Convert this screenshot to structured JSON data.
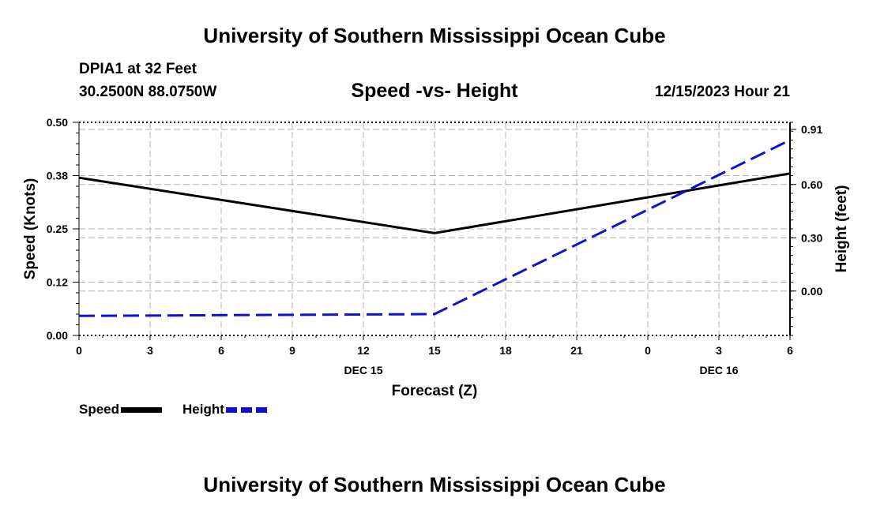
{
  "header": {
    "title": "University of Southern Mississippi Ocean Cube",
    "station": "DPIA1 at 32 Feet",
    "coordinates": "30.2500N  88.0750W",
    "datetime": "12/15/2023 Hour 21"
  },
  "footer": {
    "title": "University of Southern Mississippi Ocean Cube"
  },
  "legend": {
    "speed_label": "Speed",
    "height_label": "Height"
  },
  "colors": {
    "speed": "#000000",
    "height": "#1010d0",
    "grid": "#b4b4b4"
  },
  "chart_data": {
    "type": "line",
    "title": "Speed -vs- Height",
    "xlabel": "Forecast (Z)",
    "ylabel": "Speed (Knots)",
    "y2label": "Height (feet)",
    "x_hours": [
      0,
      3,
      6,
      9,
      12,
      15,
      18,
      21,
      24,
      27,
      30
    ],
    "x_tick_labels": [
      "0",
      "3",
      "6",
      "9",
      "12",
      "15",
      "18",
      "21",
      "0",
      "3",
      "6"
    ],
    "date_labels": [
      {
        "hour": 12,
        "label": "DEC 15"
      },
      {
        "hour": 27,
        "label": "DEC 16"
      }
    ],
    "xlim": [
      0,
      30
    ],
    "ylim": [
      0,
      0.5
    ],
    "y_ticks": [
      0.0,
      0.125,
      0.25,
      0.375,
      0.5
    ],
    "y_tick_labels": [
      "0.00",
      "0.12",
      "0.25",
      "0.38",
      "0.50"
    ],
    "y2lim": [
      -0.25,
      0.95
    ],
    "y2_ticks": [
      0.0,
      0.3,
      0.6,
      0.91
    ],
    "y2_tick_labels": [
      "0.00",
      "0.30",
      "0.60",
      "0.91"
    ],
    "grid": true,
    "series": [
      {
        "name": "Speed",
        "axis": "left",
        "style": "solid",
        "x": [
          0,
          15,
          30
        ],
        "values": [
          0.37,
          0.24,
          0.38
        ]
      },
      {
        "name": "Height",
        "axis": "right",
        "style": "dashed",
        "x": [
          0,
          15,
          30
        ],
        "values": [
          -0.14,
          -0.13,
          0.85
        ]
      }
    ]
  }
}
